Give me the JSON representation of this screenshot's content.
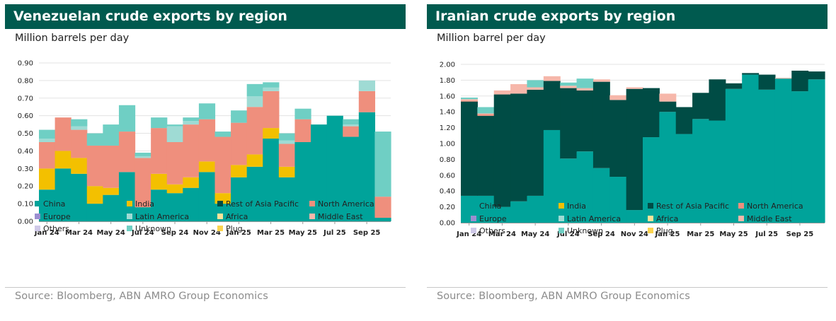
{
  "colors": {
    "China": "#00a39a",
    "India": "#f3c000",
    "Rest of Asia Pacific": "#004c45",
    "North America": "#ef8f7d",
    "Europe": "#9b8fd0",
    "Latin America": "#9fdbd4",
    "Africa": "#fbe39a",
    "Middle East": "#f6b7aa",
    "Others": "#cfc9e8",
    "Unknown": "#6fcfc4",
    "Plug": "#fbd450"
  },
  "source_text": "Source: Bloomberg, ABN AMRO Group Economics",
  "chart_data": [
    {
      "type": "area",
      "stacking": "step",
      "title": "Venezuelan crude exports by region",
      "ylabel": "Million barrels per day",
      "ylim": [
        0,
        0.9
      ],
      "yticks": [
        "0.00",
        "0.10",
        "0.20",
        "0.30",
        "0.40",
        "0.50",
        "0.60",
        "0.70",
        "0.80",
        "0.90"
      ],
      "ytick_values": [
        0,
        0.1,
        0.2,
        0.3,
        0.4,
        0.5,
        0.6,
        0.7,
        0.8,
        0.9
      ],
      "grid": true,
      "x": [
        "Jan 24",
        "Feb 24",
        "Mar 24",
        "Apr 24",
        "May 24",
        "Jun 24",
        "Jul 24",
        "Aug 24",
        "Sep 24",
        "Oct 24",
        "Nov 24",
        "Dec 24",
        "Jan 25",
        "Feb 25",
        "Mar 25",
        "Apr 25",
        "May 25",
        "Jun 25",
        "Jul 25",
        "Aug 25",
        "Sep 25",
        "Oct 25"
      ],
      "xtick_labels": [
        "Jan 24",
        "Mar 24",
        "May 24",
        "Jul 24",
        "Sep 24",
        "Nov 24",
        "Jan 25",
        "Mar 25",
        "May 25",
        "Jul 25",
        "Sep 25"
      ],
      "series": [
        {
          "name": "China",
          "values": [
            0.18,
            0.3,
            0.27,
            0.1,
            0.15,
            0.28,
            0.08,
            0.18,
            0.16,
            0.19,
            0.28,
            0.1,
            0.25,
            0.31,
            0.47,
            0.25,
            0.45,
            0.55,
            0.6,
            0.48,
            0.62,
            0.02
          ]
        },
        {
          "name": "India",
          "values": [
            0.12,
            0.1,
            0.09,
            0.1,
            0.04,
            0.0,
            0.0,
            0.09,
            0.05,
            0.06,
            0.06,
            0.06,
            0.07,
            0.07,
            0.06,
            0.06,
            0.0,
            0.0,
            0.0,
            0.0,
            0.0,
            0.0
          ]
        },
        {
          "name": "Rest of Asia Pacific",
          "values": [
            0,
            0,
            0,
            0,
            0,
            0,
            0,
            0,
            0,
            0,
            0,
            0,
            0,
            0,
            0,
            0,
            0,
            0,
            0,
            0,
            0,
            0
          ]
        },
        {
          "name": "North America",
          "values": [
            0.15,
            0.19,
            0.16,
            0.23,
            0.24,
            0.23,
            0.28,
            0.26,
            0.24,
            0.3,
            0.24,
            0.32,
            0.24,
            0.27,
            0.21,
            0.13,
            0.13,
            0.0,
            0.0,
            0.06,
            0.12,
            0.12
          ]
        },
        {
          "name": "Europe",
          "values": [
            0,
            0,
            0,
            0,
            0,
            0,
            0,
            0,
            0,
            0,
            0,
            0,
            0,
            0,
            0,
            0,
            0,
            0,
            0,
            0,
            0,
            0
          ]
        },
        {
          "name": "Latin America",
          "values": [
            0.02,
            0.0,
            0.02,
            0.0,
            0.0,
            0.0,
            0.01,
            0.0,
            0.09,
            0.02,
            0.0,
            0.0,
            0.0,
            0.06,
            0.02,
            0.02,
            0.0,
            0.0,
            0.0,
            0.01,
            0.06,
            0.0
          ]
        },
        {
          "name": "Africa",
          "values": [
            0,
            0,
            0,
            0,
            0,
            0,
            0,
            0,
            0,
            0,
            0,
            0,
            0,
            0,
            0,
            0,
            0,
            0,
            0,
            0,
            0,
            0
          ]
        },
        {
          "name": "Middle East",
          "values": [
            0,
            0,
            0,
            0,
            0,
            0,
            0,
            0,
            0,
            0,
            0,
            0,
            0,
            0,
            0,
            0,
            0,
            0,
            0,
            0,
            0,
            0
          ]
        },
        {
          "name": "Others",
          "values": [
            0,
            0,
            0,
            0,
            0,
            0,
            0,
            0,
            0,
            0,
            0,
            0,
            0,
            0,
            0,
            0,
            0,
            0,
            0,
            0,
            0,
            0
          ]
        },
        {
          "name": "Unknown",
          "values": [
            0.05,
            0.0,
            0.04,
            0.07,
            0.12,
            0.15,
            0.02,
            0.06,
            0.01,
            0.02,
            0.09,
            0.03,
            0.07,
            0.07,
            0.03,
            0.04,
            0.06,
            0.0,
            0.0,
            0.03,
            0.0,
            0.37
          ]
        },
        {
          "name": "Plug",
          "values": [
            0,
            0,
            0,
            0,
            0,
            0,
            0,
            0,
            0,
            0,
            0,
            0,
            0,
            0,
            0,
            0,
            0,
            0,
            0,
            0,
            0,
            0
          ]
        }
      ],
      "legend": [
        [
          "China",
          "India",
          "Rest of Asia Pacific",
          "North America"
        ],
        [
          "Europe",
          "Latin America",
          "Africa",
          "Middle East"
        ],
        [
          "Others",
          "Unknown",
          "Plug"
        ]
      ]
    },
    {
      "type": "area",
      "stacking": "step",
      "title": "Iranian crude exports by region",
      "ylabel": "Million barrel per day",
      "ylim": [
        0,
        2.0
      ],
      "yticks": [
        "0.00",
        "0.20",
        "0.40",
        "0.60",
        "0.80",
        "1.00",
        "1.20",
        "1.40",
        "1.60",
        "1.80",
        "2.00"
      ],
      "ytick_values": [
        0,
        0.2,
        0.4,
        0.6,
        0.8,
        1.0,
        1.2,
        1.4,
        1.6,
        1.8,
        2.0
      ],
      "grid": true,
      "x": [
        "Jan 24",
        "Feb 24",
        "Mar 24",
        "Apr 24",
        "May 24",
        "Jun 24",
        "Jul 24",
        "Aug 24",
        "Sep 24",
        "Oct 24",
        "Nov 24",
        "Dec 24",
        "Jan 25",
        "Feb 25",
        "Mar 25",
        "Apr 25",
        "May 25",
        "Jun 25",
        "Jul 25",
        "Aug 25",
        "Sep 25",
        "Oct 25"
      ],
      "xtick_labels": [
        "Jan 24",
        "Mar 24",
        "May 24",
        "Jul 24",
        "Sep 24",
        "Nov 24",
        "Jan 25",
        "Mar 25",
        "May 25",
        "Jul 25",
        "Sep 25"
      ],
      "series": [
        {
          "name": "China",
          "values": [
            0.34,
            0.34,
            0.2,
            0.27,
            0.34,
            1.17,
            0.81,
            0.9,
            0.69,
            0.58,
            0.16,
            1.08,
            1.4,
            1.12,
            1.31,
            1.29,
            1.69,
            1.87,
            1.68,
            1.82,
            1.66,
            1.81
          ]
        },
        {
          "name": "India",
          "values": [
            0,
            0,
            0,
            0,
            0,
            0,
            0,
            0,
            0,
            0,
            0,
            0,
            0,
            0,
            0,
            0,
            0,
            0,
            0,
            0,
            0,
            0
          ]
        },
        {
          "name": "Rest of Asia Pacific",
          "values": [
            1.19,
            1.01,
            1.42,
            1.36,
            1.34,
            0.62,
            0.89,
            0.77,
            1.09,
            0.97,
            1.53,
            0.62,
            0.13,
            0.34,
            0.33,
            0.52,
            0.07,
            0.02,
            0.19,
            0.0,
            0.26,
            0.1
          ]
        },
        {
          "name": "North America",
          "values": [
            0.01,
            0.02,
            0.0,
            0.0,
            0.0,
            0.0,
            0.0,
            0.0,
            0.0,
            0.0,
            0.0,
            0.0,
            0.0,
            0.0,
            0.0,
            0.0,
            0.0,
            0.0,
            0.0,
            0.0,
            0.0,
            0.0
          ]
        },
        {
          "name": "Europe",
          "values": [
            0,
            0,
            0,
            0,
            0,
            0,
            0,
            0,
            0,
            0,
            0,
            0,
            0,
            0,
            0,
            0,
            0,
            0,
            0,
            0,
            0,
            0
          ]
        },
        {
          "name": "Latin America",
          "values": [
            0,
            0,
            0,
            0,
            0,
            0,
            0,
            0,
            0,
            0,
            0,
            0,
            0,
            0,
            0,
            0,
            0,
            0,
            0,
            0,
            0,
            0
          ]
        },
        {
          "name": "Africa",
          "values": [
            0,
            0,
            0,
            0,
            0,
            0,
            0,
            0,
            0,
            0,
            0,
            0,
            0,
            0,
            0,
            0,
            0,
            0,
            0,
            0,
            0,
            0
          ]
        },
        {
          "name": "Middle East",
          "values": [
            0.02,
            0.01,
            0.05,
            0.12,
            0.03,
            0.06,
            0.03,
            0.03,
            0.03,
            0.06,
            0.02,
            0.0,
            0.1,
            0.0,
            0.0,
            0.0,
            0.0,
            0.0,
            0.0,
            0.01,
            0.0,
            0.0
          ]
        },
        {
          "name": "Others",
          "values": [
            0,
            0,
            0,
            0,
            0,
            0,
            0,
            0,
            0,
            0,
            0,
            0,
            0,
            0,
            0,
            0,
            0,
            0,
            0,
            0,
            0,
            0
          ]
        },
        {
          "name": "Unknown",
          "values": [
            0.02,
            0.08,
            0.0,
            0.0,
            0.09,
            0.0,
            0.04,
            0.12,
            0.0,
            0.0,
            0.0,
            0.0,
            0.0,
            0.0,
            0.0,
            0.0,
            0.0,
            0.0,
            0.0,
            0.0,
            0.0,
            0.0
          ]
        },
        {
          "name": "Plug",
          "values": [
            0,
            0,
            0,
            0,
            0,
            0,
            0,
            0,
            0,
            0,
            0,
            0,
            0,
            0,
            0,
            0,
            0,
            0,
            0,
            0,
            0,
            0
          ]
        }
      ],
      "legend": [
        [
          "China",
          "India",
          "Rest of Asia Pacific",
          "North America"
        ],
        [
          "Europe",
          "Latin America",
          "Africa",
          "Middle East"
        ],
        [
          "Others",
          "Unknown",
          "Plug"
        ]
      ]
    }
  ]
}
